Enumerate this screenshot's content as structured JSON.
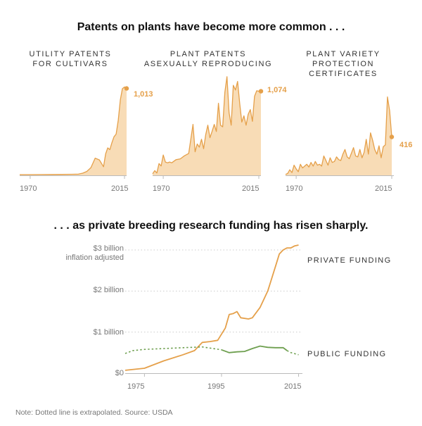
{
  "titles": {
    "top": "Patents on plants have become more common . . .",
    "bottom": ". . . as private breeding research funding has risen sharply."
  },
  "note": "Note: Dotted line is extrapolated. Source: USDA",
  "colors": {
    "accent": "#e5a04a",
    "area_fill": "#f8dcb6",
    "public": "#6e9f4f",
    "grid": "#cccccc"
  },
  "chart_data": [
    {
      "type": "area",
      "title_lines": [
        "UTILITY PATENTS",
        "FOR CULTIVARS"
      ],
      "x_ticks": [
        "1970",
        "2015"
      ],
      "end_label": "1,013",
      "xlim": [
        1965,
        2016
      ],
      "ylim": [
        0,
        1100
      ],
      "x": [
        1965,
        1970,
        1975,
        1980,
        1985,
        1990,
        1993,
        1995,
        1997,
        1999,
        2001,
        2003,
        2005,
        2006,
        2007,
        2008,
        2009,
        2010,
        2011,
        2012,
        2013,
        2014,
        2015,
        2016
      ],
      "values": [
        8,
        8,
        9,
        10,
        11,
        12,
        14,
        25,
        45,
        90,
        200,
        180,
        100,
        250,
        320,
        300,
        380,
        450,
        480,
        640,
        880,
        1010,
        1030,
        1013
      ]
    },
    {
      "type": "area",
      "title_lines": [
        "PLANT PATENTS",
        "ASEXUALLY REPRODUCING"
      ],
      "x_ticks": [
        "1970",
        "2015"
      ],
      "end_label": "1,074",
      "xlim": [
        1965,
        2016
      ],
      "ylim": [
        0,
        1250
      ],
      "x": [
        1965,
        1966,
        1967,
        1968,
        1969,
        1970,
        1971,
        1972,
        1973,
        1974,
        1976,
        1978,
        1980,
        1982,
        1984,
        1985,
        1986,
        1987,
        1988,
        1989,
        1990,
        1991,
        1992,
        1993,
        1994,
        1995,
        1996,
        1997,
        1998,
        1999,
        2000,
        2001,
        2002,
        2003,
        2004,
        2005,
        2006,
        2007,
        2008,
        2009,
        2010,
        2011,
        2012,
        2013,
        2014,
        2015,
        2016
      ],
      "values": [
        20,
        60,
        30,
        150,
        120,
        260,
        170,
        160,
        170,
        160,
        200,
        210,
        250,
        280,
        650,
        300,
        400,
        360,
        460,
        340,
        520,
        640,
        480,
        560,
        650,
        560,
        920,
        640,
        620,
        1060,
        1260,
        800,
        640,
        1150,
        1090,
        1200,
        920,
        680,
        760,
        640,
        780,
        840,
        690,
        1010,
        1080,
        1074,
        1074
      ]
    },
    {
      "type": "area",
      "title_lines": [
        "PLANT VARIETY",
        "PROTECTION",
        "CERTIFICATES"
      ],
      "x_ticks": [
        "1970",
        "2015"
      ],
      "end_label": "416",
      "xlim": [
        1965,
        2016
      ],
      "ylim": [
        0,
        1000
      ],
      "x": [
        1965,
        1966,
        1967,
        1968,
        1969,
        1970,
        1971,
        1972,
        1973,
        1974,
        1975,
        1976,
        1977,
        1978,
        1979,
        1980,
        1981,
        1982,
        1983,
        1984,
        1985,
        1986,
        1987,
        1988,
        1989,
        1990,
        1991,
        1992,
        1993,
        1994,
        1995,
        1996,
        1997,
        1998,
        1999,
        2000,
        2001,
        2002,
        2003,
        2004,
        2005,
        2006,
        2007,
        2008,
        2009,
        2010,
        2011,
        2012,
        2013,
        2014,
        2015
      ],
      "values": [
        10,
        20,
        60,
        30,
        110,
        70,
        40,
        120,
        80,
        100,
        120,
        90,
        140,
        100,
        150,
        110,
        120,
        100,
        210,
        160,
        110,
        190,
        140,
        150,
        200,
        170,
        160,
        230,
        280,
        200,
        180,
        240,
        300,
        210,
        200,
        280,
        190,
        250,
        390,
        230,
        460,
        380,
        280,
        230,
        320,
        190,
        310,
        330,
        850,
        700,
        416
      ]
    },
    {
      "type": "line",
      "ylabel": "inflation adjusted",
      "y_ticks": [
        "$3 billion",
        "$2 billion",
        "$1 billion",
        "$0"
      ],
      "x_ticks": [
        "1975",
        "1995",
        "2015"
      ],
      "xlim": [
        1970,
        2016
      ],
      "ylim": [
        0,
        3
      ],
      "series": [
        {
          "name": "PRIVATE FUNDING",
          "x": [
            1970,
            1975,
            1980,
            1985,
            1988,
            1990,
            1992,
            1994,
            1996,
            1997,
            1998,
            1999,
            2000,
            2002,
            2003,
            2005,
            2007,
            2009,
            2010,
            2011,
            2012,
            2013,
            2014,
            2015
          ],
          "values": [
            0.07,
            0.12,
            0.3,
            0.45,
            0.55,
            0.75,
            0.77,
            0.8,
            1.1,
            1.43,
            1.45,
            1.5,
            1.35,
            1.32,
            1.35,
            1.6,
            2.0,
            2.6,
            2.9,
            3.0,
            3.05,
            3.05,
            3.1,
            3.12
          ]
        },
        {
          "name": "PUBLIC FUNDING",
          "x": [
            1970,
            1972,
            1975,
            1980,
            1985,
            1990,
            1995,
            1997,
            1999,
            2001,
            2003,
            2005,
            2007,
            2009,
            2011,
            2012,
            2013,
            2015
          ],
          "values": [
            0.48,
            0.55,
            0.58,
            0.6,
            0.62,
            0.64,
            0.57,
            0.5,
            0.52,
            0.53,
            0.6,
            0.66,
            0.63,
            0.62,
            0.62,
            0.55,
            0.5,
            0.45
          ],
          "solid_from": 1995,
          "solid_to": 2012
        }
      ]
    }
  ]
}
